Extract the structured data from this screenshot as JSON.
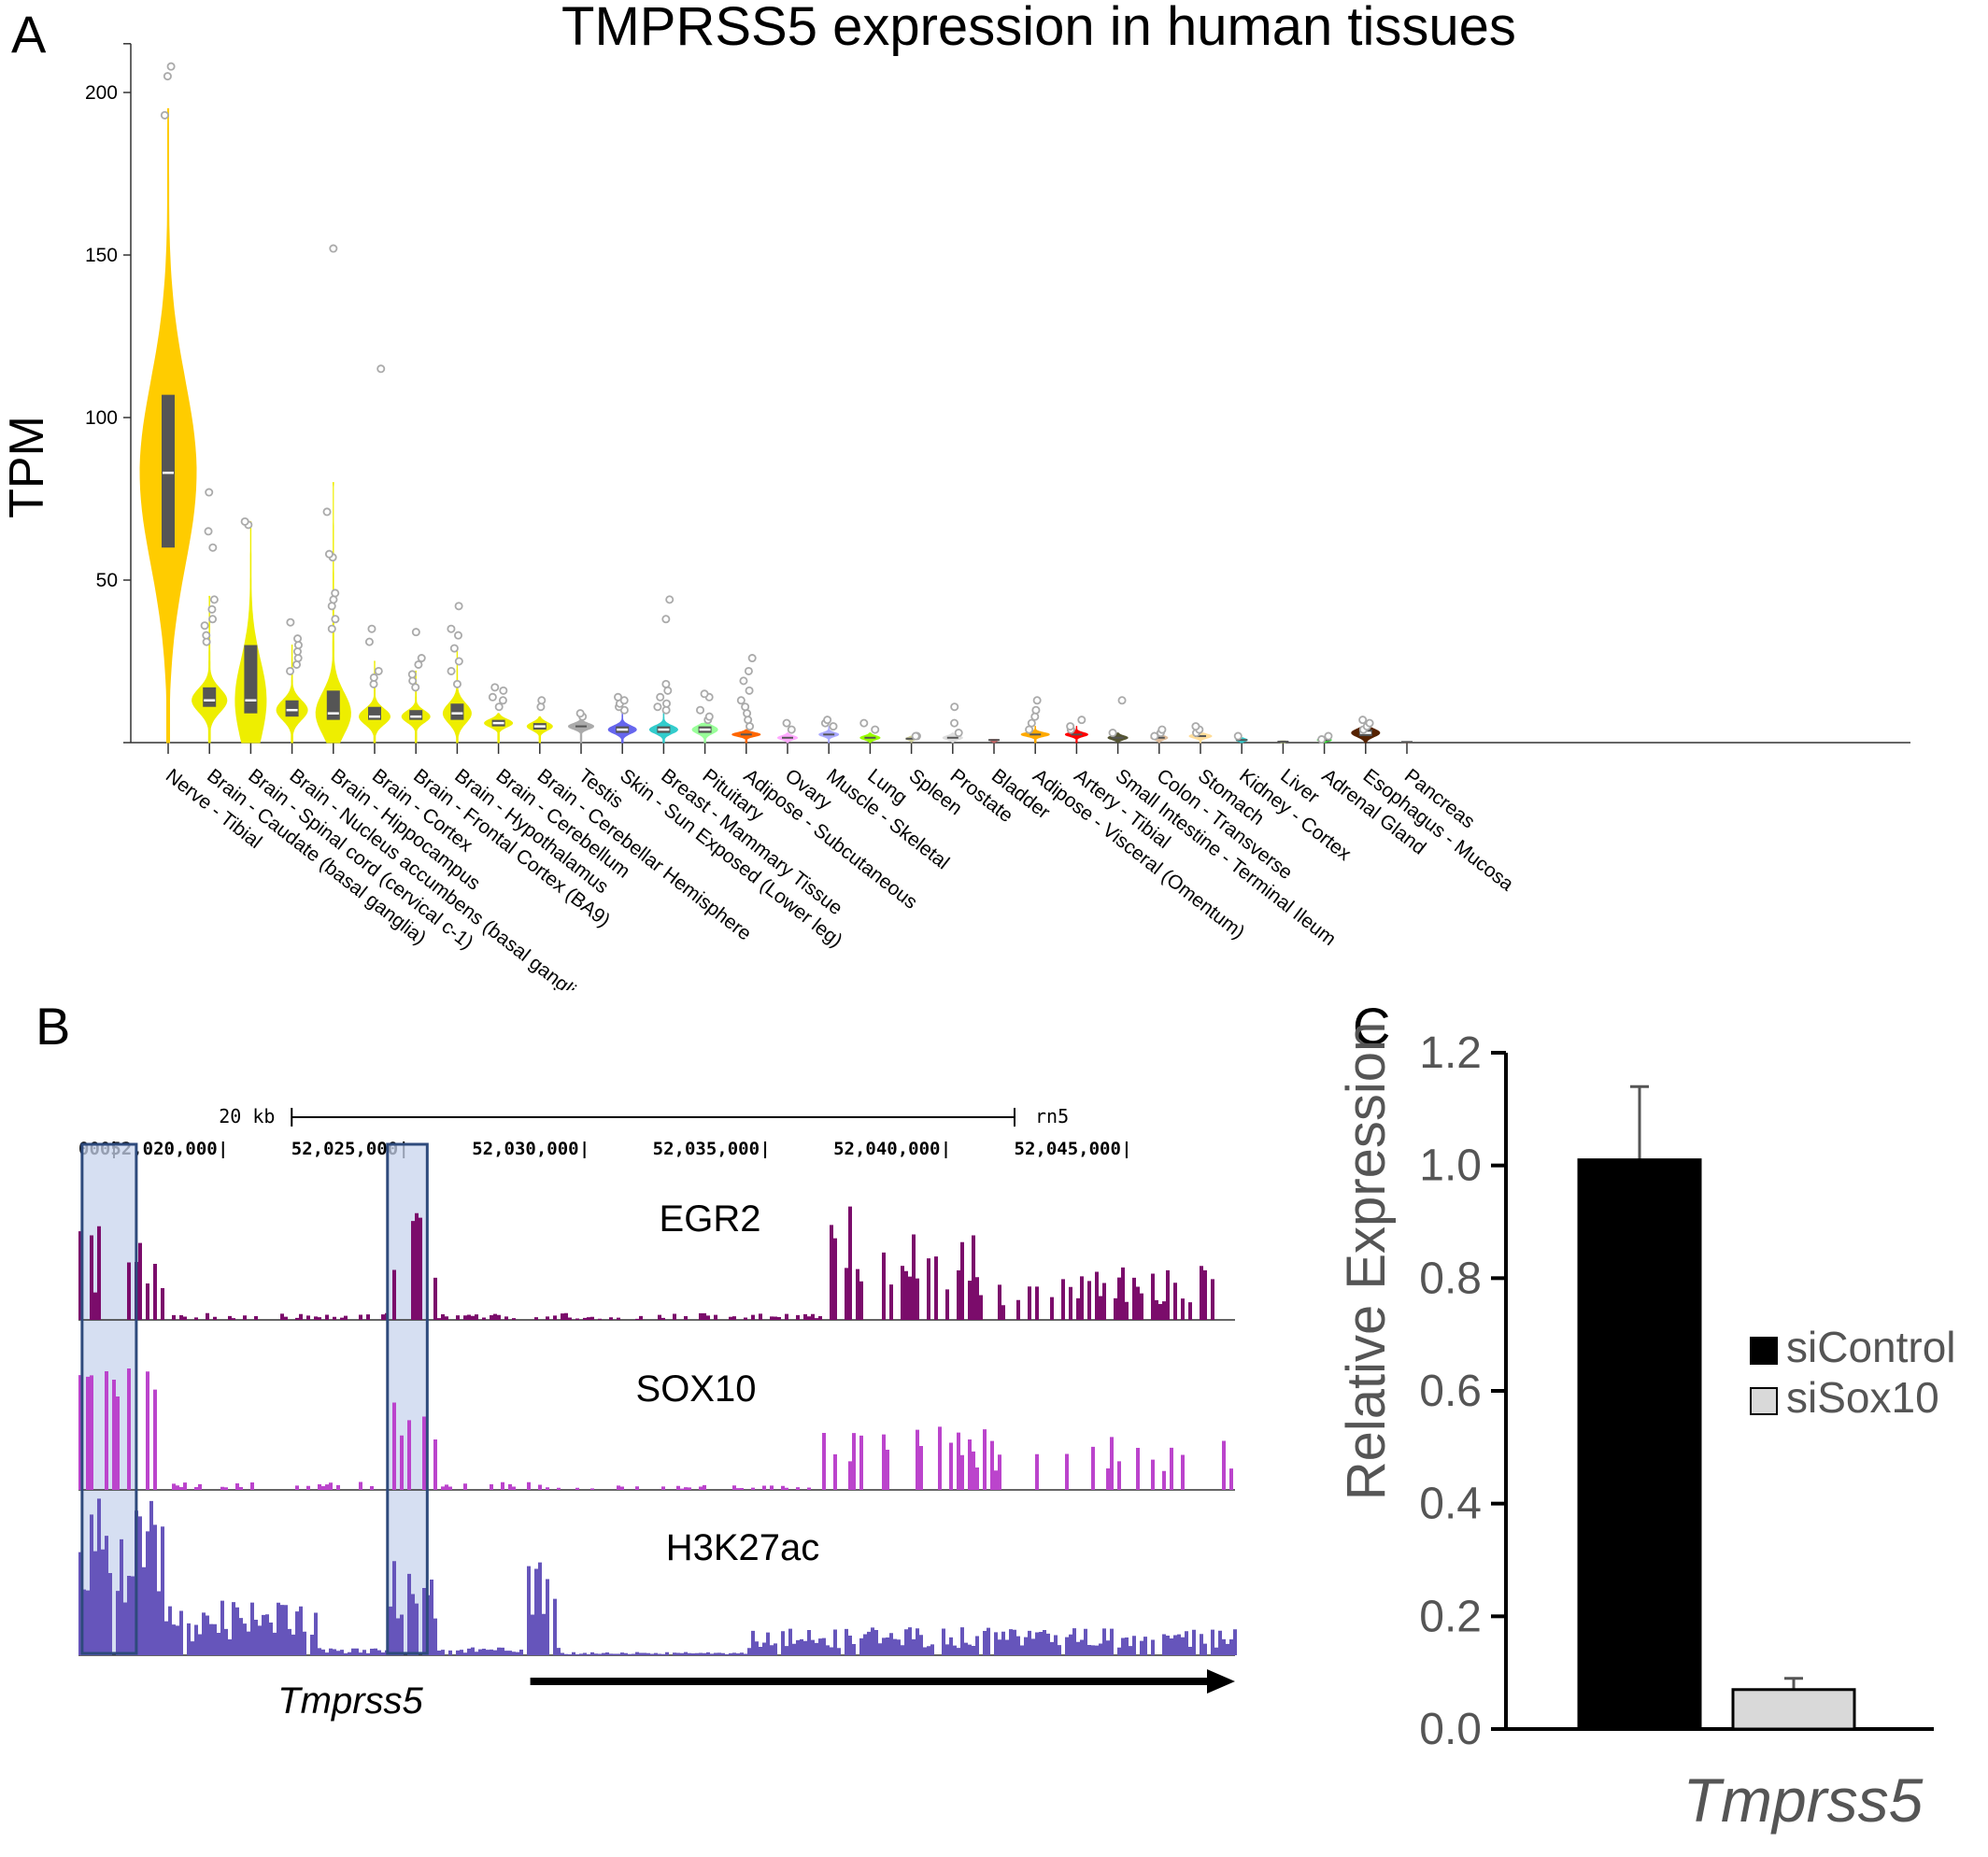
{
  "panels": {
    "a_letter": "A",
    "b_letter": "B",
    "c_letter": "C"
  },
  "colors": {
    "nerve": "#FFCC00",
    "brain": "#EEEE00",
    "box": "#555555",
    "point": "#aaaaaa",
    "egr2": "#7B0C6B",
    "sox10": "#BB44CC",
    "h3k27ac": "#6655BB",
    "highlight_fill": "#C8D4EE",
    "highlight_stroke": "#2E4A7C",
    "siControl": "#000000",
    "siSox10": "#d9d9d9",
    "axisC": "#555555"
  },
  "chart_data": [
    {
      "type": "violin",
      "title": "TMPRSS5 expression in human tissues",
      "ylabel": "TPM",
      "ylim": [
        0,
        210
      ],
      "yticks": [
        50,
        100,
        150,
        200
      ],
      "ytick_labels": [
        "50",
        "100",
        "150",
        "200"
      ],
      "tissues": [
        {
          "name": "Nerve - Tibial",
          "q1": 60,
          "median": 83,
          "q3": 107,
          "max_kde": 195,
          "width": 1.0,
          "color": "#FFCC00",
          "outliers": [
            193,
            205,
            208
          ]
        },
        {
          "name": "Brain - Caudate (basal ganglia)",
          "q1": 11,
          "median": 13,
          "q3": 17,
          "max_kde": 45,
          "width": 0.62,
          "color": "#EEEE00",
          "outliers": [
            31,
            33,
            36,
            38,
            41,
            44,
            60,
            65,
            77
          ]
        },
        {
          "name": "Brain - Spinal cord (cervical c-1)",
          "q1": 9,
          "median": 13,
          "q3": 30,
          "max_kde": 68,
          "width": 0.55,
          "color": "#EEEE00",
          "outliers": [
            67,
            68
          ]
        },
        {
          "name": "Brain - Nucleus accumbens (basal ganglia)",
          "q1": 8,
          "median": 10,
          "q3": 13,
          "max_kde": 30,
          "width": 0.55,
          "color": "#EEEE00",
          "outliers": [
            22,
            24,
            26,
            28,
            30,
            32,
            37
          ]
        },
        {
          "name": "Brain - Hippocampus",
          "q1": 7,
          "median": 9,
          "q3": 16,
          "max_kde": 80,
          "width": 0.62,
          "color": "#EEEE00",
          "outliers": [
            35,
            38,
            42,
            44,
            46,
            57,
            58,
            71,
            152
          ]
        },
        {
          "name": "Brain - Cortex",
          "q1": 7,
          "median": 8,
          "q3": 11,
          "max_kde": 25,
          "width": 0.55,
          "color": "#EEEE00",
          "outliers": [
            18,
            20,
            22,
            31,
            35,
            115
          ]
        },
        {
          "name": "Brain - Frontal Cortex (BA9)",
          "q1": 7,
          "median": 8,
          "q3": 10,
          "max_kde": 22,
          "width": 0.5,
          "color": "#EEEE00",
          "outliers": [
            17,
            19,
            21,
            24,
            26,
            34
          ]
        },
        {
          "name": "Brain - Hypothalamus",
          "q1": 7,
          "median": 9,
          "q3": 12,
          "max_kde": 28,
          "width": 0.5,
          "color": "#EEEE00",
          "outliers": [
            18,
            22,
            25,
            29,
            33,
            35,
            42
          ]
        },
        {
          "name": "Brain - Cerebellum",
          "q1": 5,
          "median": 6,
          "q3": 7,
          "max_kde": 9,
          "width": 0.5,
          "color": "#EEEE00",
          "outliers": [
            11,
            13,
            14,
            16,
            17
          ]
        },
        {
          "name": "Brain - Cerebellar Hemisphere",
          "q1": 4,
          "median": 5,
          "q3": 6,
          "max_kde": 8,
          "width": 0.45,
          "color": "#EEEE00",
          "outliers": [
            11,
            13
          ]
        },
        {
          "name": "Testis",
          "q1": 4,
          "median": 5,
          "q3": 5.5,
          "max_kde": 7,
          "width": 0.45,
          "color": "#aaaaaa",
          "outliers": [
            8,
            9
          ]
        },
        {
          "name": "Skin - Sun Exposed (Lower leg)",
          "q1": 3,
          "median": 4,
          "q3": 5,
          "max_kde": 9,
          "width": 0.5,
          "color": "#6666ee",
          "outliers": [
            10,
            11,
            12,
            13,
            14
          ]
        },
        {
          "name": "Breast - Mammary Tissue",
          "q1": 3,
          "median": 4,
          "q3": 5,
          "max_kde": 10,
          "width": 0.5,
          "color": "#33cccc",
          "outliers": [
            10,
            11,
            12,
            14,
            16,
            18,
            38,
            44
          ]
        },
        {
          "name": "Pituitary",
          "q1": 3,
          "median": 4,
          "q3": 5,
          "max_kde": 6,
          "width": 0.45,
          "color": "#99ff99",
          "outliers": [
            7,
            8,
            10,
            14,
            15
          ]
        },
        {
          "name": "Adipose - Subcutaneous",
          "q1": 2,
          "median": 2.5,
          "q3": 3,
          "max_kde": 4,
          "width": 0.5,
          "color": "#ff6600",
          "outliers": [
            5,
            7,
            9,
            11,
            13,
            16,
            19,
            22,
            26
          ]
        },
        {
          "name": "Ovary",
          "q1": 1,
          "median": 1.5,
          "q3": 2,
          "max_kde": 3,
          "width": 0.35,
          "color": "#ffaaff",
          "outliers": [
            4,
            6
          ]
        },
        {
          "name": "Muscle - Skeletal",
          "q1": 2,
          "median": 2.5,
          "q3": 3,
          "max_kde": 5,
          "width": 0.35,
          "color": "#aaaaff",
          "outliers": [
            5,
            6,
            7
          ]
        },
        {
          "name": "Lung",
          "q1": 1,
          "median": 1.5,
          "q3": 2,
          "max_kde": 3,
          "width": 0.35,
          "color": "#99ff00",
          "outliers": [
            4,
            6
          ]
        },
        {
          "name": "Spleen",
          "q1": 1,
          "median": 1.2,
          "q3": 1.5,
          "max_kde": 2,
          "width": 0.2,
          "color": "#cccc99",
          "outliers": [
            2,
            2
          ]
        },
        {
          "name": "Prostate",
          "q1": 1,
          "median": 1.5,
          "q3": 2,
          "max_kde": 3,
          "width": 0.35,
          "color": "#dddddd",
          "outliers": [
            3,
            6,
            11
          ]
        },
        {
          "name": "Bladder",
          "q1": 0.5,
          "median": 0.8,
          "q3": 1,
          "max_kde": 1,
          "width": 0.15,
          "color": "#cc6666",
          "outliers": []
        },
        {
          "name": "Adipose - Visceral (Omentum)",
          "q1": 2,
          "median": 2.5,
          "q3": 3,
          "max_kde": 5,
          "width": 0.5,
          "color": "#ffaa00",
          "outliers": [
            4,
            6,
            8,
            10,
            13
          ]
        },
        {
          "name": "Artery - Tibial",
          "q1": 2,
          "median": 2.5,
          "q3": 3,
          "max_kde": 5,
          "width": 0.4,
          "color": "#ff0000",
          "outliers": [
            4,
            5,
            7
          ]
        },
        {
          "name": "Small Intestine - Terminal Ileum",
          "q1": 1,
          "median": 1.5,
          "q3": 2,
          "max_kde": 3,
          "width": 0.35,
          "color": "#555533",
          "outliers": [
            3,
            13
          ]
        },
        {
          "name": "Colon - Transverse",
          "q1": 1,
          "median": 1.5,
          "q3": 2,
          "max_kde": 3,
          "width": 0.3,
          "color": "#ddbb99",
          "outliers": [
            2,
            3,
            4
          ]
        },
        {
          "name": "Stomach",
          "q1": 1.5,
          "median": 2,
          "q3": 2.5,
          "max_kde": 3,
          "width": 0.4,
          "color": "#ffdd99",
          "outliers": [
            3,
            4,
            5
          ]
        },
        {
          "name": "Kidney - Cortex",
          "q1": 0.5,
          "median": 0.8,
          "q3": 1,
          "max_kde": 1.5,
          "width": 0.2,
          "color": "#33cccc",
          "outliers": [
            2
          ]
        },
        {
          "name": "Liver",
          "q1": 0.2,
          "median": 0.3,
          "q3": 0.4,
          "max_kde": 0.5,
          "width": 0.1,
          "color": "#aabb66",
          "outliers": []
        },
        {
          "name": "Adrenal Gland",
          "q1": 0.5,
          "median": 0.8,
          "q3": 1,
          "max_kde": 1.5,
          "width": 0.25,
          "color": "#33dd33",
          "outliers": [
            1,
            2
          ]
        },
        {
          "name": "Esophagus - Mucosa",
          "q1": 2,
          "median": 3,
          "q3": 4,
          "max_kde": 5,
          "width": 0.5,
          "color": "#552200",
          "outliers": [
            4,
            5,
            6,
            7
          ]
        },
        {
          "name": "Pancreas",
          "q1": 0.1,
          "median": 0.2,
          "q3": 0.3,
          "max_kde": 0.3,
          "width": 0.1,
          "color": "#995533",
          "outliers": []
        }
      ]
    },
    {
      "type": "genome_tracks",
      "scale_label": "20 kb",
      "assembly_label": "rn5",
      "position_ticks": [
        "52,020,000",
        "52,025,000",
        "52,030,000",
        "52,035,000",
        "52,040,000",
        "52,045,000"
      ],
      "left_clip_label": "000",
      "x_range": [
        52016000,
        52048000
      ],
      "tracks": [
        {
          "name": "EGR2",
          "color": "#7B0C6B"
        },
        {
          "name": "SOX10",
          "color": "#BB44CC"
        },
        {
          "name": "H3K27ac",
          "color": "#6655BB"
        }
      ],
      "highlight_regions": [
        [
          52016100,
          52017600
        ],
        [
          52024550,
          52025650
        ]
      ],
      "gene_label": "Tmprss5",
      "gene_arrow_range": [
        52028500,
        52048000
      ]
    },
    {
      "type": "bar",
      "categories": [
        "siControl",
        "siSox10"
      ],
      "values": [
        1.01,
        0.07
      ],
      "errors": [
        0.13,
        0.02
      ],
      "ylabel": "Relative Expression",
      "xlabel": "Tmprss5",
      "ylim": [
        0,
        1.2
      ],
      "yticks": [
        "0.0",
        "0.2",
        "0.4",
        "0.6",
        "0.8",
        "1.0",
        "1.2"
      ],
      "legend": [
        "siControl",
        "siSox10"
      ],
      "legend_position": "right"
    }
  ]
}
